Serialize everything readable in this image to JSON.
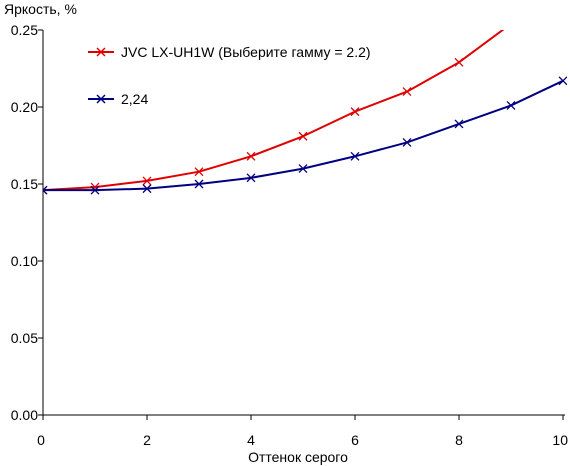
{
  "chart_data": {
    "type": "line",
    "ylabel": "Яркость, %",
    "xlabel": "Оттенок серого",
    "xlim": [
      0,
      10
    ],
    "ylim": [
      0,
      0.25
    ],
    "x_ticks": [
      "0",
      "2",
      "4",
      "6",
      "8",
      "10"
    ],
    "y_ticks": [
      "0.00",
      "0.05",
      "0.10",
      "0.15",
      "0.20",
      "0.25"
    ],
    "grid": false,
    "legend_position": "top-left",
    "series": [
      {
        "name": "JVC LX-UH1W (Выберите гамму = 2.2)",
        "color": "#e00000",
        "marker": "x",
        "x": [
          0,
          1,
          2,
          3,
          4,
          5,
          6,
          7,
          8,
          9
        ],
        "y": [
          0.146,
          0.148,
          0.152,
          0.158,
          0.168,
          0.181,
          0.197,
          0.21,
          0.229,
          0.254
        ]
      },
      {
        "name": "2,24",
        "color": "#000080",
        "marker": "x",
        "x": [
          0,
          1,
          2,
          3,
          4,
          5,
          6,
          7,
          8,
          9,
          10
        ],
        "y": [
          0.146,
          0.146,
          0.147,
          0.15,
          0.154,
          0.16,
          0.168,
          0.177,
          0.189,
          0.201,
          0.217
        ]
      }
    ]
  }
}
